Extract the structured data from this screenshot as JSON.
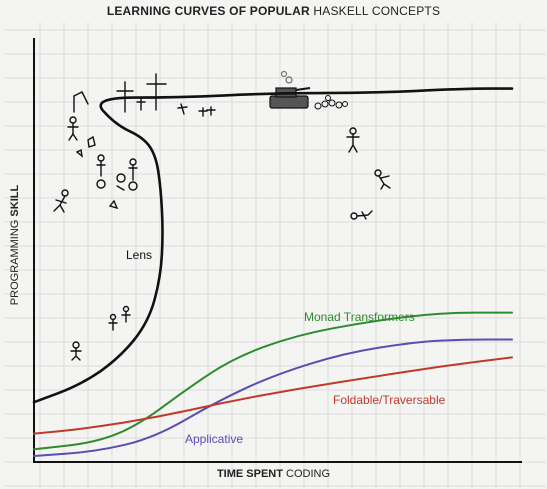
{
  "title": {
    "part_bold": "LEARNING CURVES OF POPULAR",
    "part_regular": "HASKELL CONCEPTS"
  },
  "chart_data": {
    "type": "line",
    "title": "LEARNING CURVES OF POPULAR HASKELL CONCEPTS",
    "xlabel": "TIME SPENT CODING",
    "ylabel": "PROGRAMMING SKILL",
    "grid": true,
    "legend": "inline labels",
    "series": [
      {
        "name": "Lens",
        "color": "#111111",
        "style": "hand-drawn cliff",
        "points": [
          [
            0,
            12
          ],
          [
            10,
            16
          ],
          [
            18,
            22
          ],
          [
            24,
            30
          ],
          [
            26.5,
            40
          ],
          [
            27,
            50
          ],
          [
            26.5,
            60
          ],
          [
            25.5,
            67
          ],
          [
            23,
            71
          ],
          [
            17,
            74
          ],
          [
            12,
            80
          ],
          [
            30,
            80
          ],
          [
            50,
            81
          ],
          [
            70,
            81
          ],
          [
            90,
            82
          ],
          [
            100,
            82
          ]
        ]
      },
      {
        "name": "Monad Transformers",
        "color": "#2e8b2e",
        "points": [
          [
            0,
            1.5
          ],
          [
            13,
            3
          ],
          [
            22,
            7
          ],
          [
            32,
            15
          ],
          [
            42,
            22
          ],
          [
            55,
            27
          ],
          [
            70,
            30
          ],
          [
            85,
            32
          ],
          [
            100,
            32
          ]
        ]
      },
      {
        "name": "Applicative",
        "color": "#5a4fb0",
        "points": [
          [
            0,
            0
          ],
          [
            13,
            1
          ],
          [
            25,
            4
          ],
          [
            38,
            12
          ],
          [
            50,
            18
          ],
          [
            65,
            23
          ],
          [
            80,
            25.5
          ],
          [
            90,
            26
          ],
          [
            100,
            26
          ]
        ]
      },
      {
        "name": "Foldable/Traversable",
        "color": "#c0392b",
        "points": [
          [
            0,
            5
          ],
          [
            10,
            6
          ],
          [
            25,
            8.5
          ],
          [
            40,
            12
          ],
          [
            55,
            15
          ],
          [
            70,
            17.5
          ],
          [
            85,
            20
          ],
          [
            100,
            22
          ]
        ]
      }
    ],
    "labels": {
      "lens": "Lens",
      "monad": "Monad Transformers",
      "applicative": "Applicative",
      "foldable": "Foldable/Traversable"
    }
  },
  "axis": {
    "xlabel_bold": "TIME SPENT",
    "xlabel_regular": "CODING",
    "ylabel_regular": "PROGRAMMING",
    "ylabel_bold": "SKILL"
  }
}
